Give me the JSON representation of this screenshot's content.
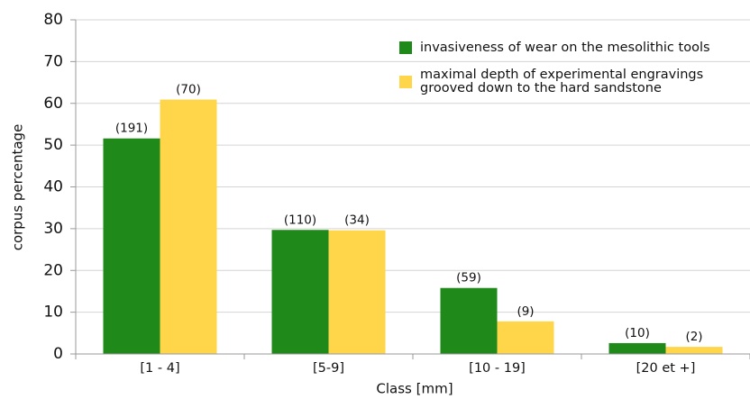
{
  "chart_data": {
    "type": "bar",
    "x_label": "Class [mm]",
    "y_label": "corpus percentage",
    "categories": [
      "[1 - 4]",
      "[5-9]",
      "[10 - 19]",
      "[20 et +]"
    ],
    "series": [
      {
        "name": "invasiveness of wear on the mesolithic tools",
        "color": "#1f8a1a",
        "values": [
          51.6,
          29.7,
          15.8,
          2.6
        ],
        "labels": [
          "(191)",
          "(110)",
          "(59)",
          "(10)"
        ]
      },
      {
        "name": "maximal depth of experimental engravings grooved down to the hard sandstone",
        "color": "#ffd54a",
        "values": [
          60.9,
          29.6,
          7.8,
          1.7
        ],
        "labels": [
          "(70)",
          "(34)",
          "(9)",
          "(2)"
        ]
      }
    ],
    "ylim": [
      0,
      80
    ],
    "yticks": [
      0,
      10,
      20,
      30,
      40,
      50,
      60,
      70,
      80
    ],
    "grid": true,
    "legend": "top-right"
  }
}
